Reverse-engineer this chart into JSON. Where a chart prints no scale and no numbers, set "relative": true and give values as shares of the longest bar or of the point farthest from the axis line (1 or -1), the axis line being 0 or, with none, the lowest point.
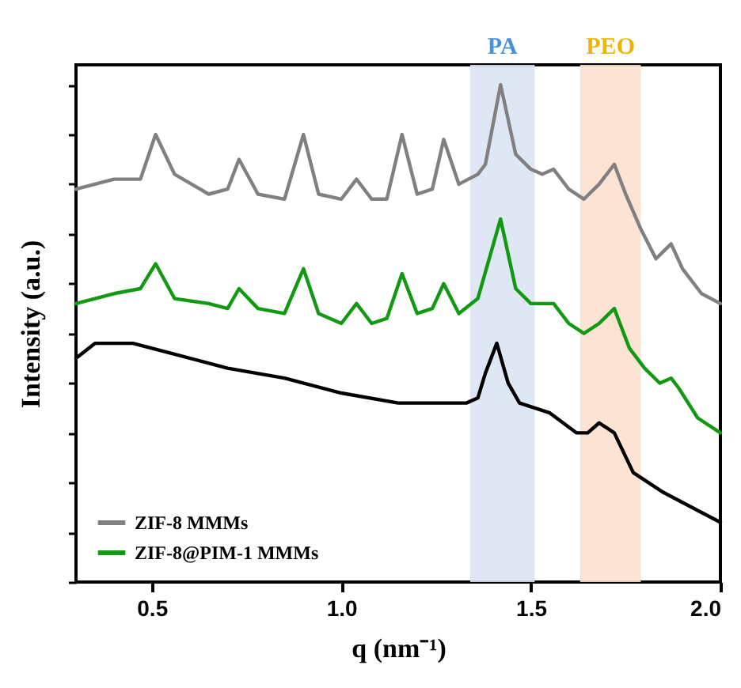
{
  "chart_data": {
    "type": "line",
    "relative": true,
    "xlabel": "q (nm⁻¹)",
    "ylabel": "Intensity (a.u.)",
    "xlim": [
      0.3,
      2.0
    ],
    "xticks": [
      {
        "value": 0.5,
        "label": "0.5"
      },
      {
        "value": 1,
        "label": "1.0"
      },
      {
        "value": 1.5,
        "label": "1.5"
      },
      {
        "value": 2,
        "label": "2.0"
      }
    ],
    "legend": "bottom left",
    "grid": false,
    "bands": [
      {
        "axis": "x",
        "from": 1.34,
        "to": 1.51,
        "label": "PA",
        "color": "#dbe3f3"
      },
      {
        "axis": "x",
        "from": 1.63,
        "to": 1.79,
        "label": "PEO",
        "color": "#fde0cf"
      }
    ],
    "series": [
      {
        "color": "#000000",
        "x": [
          0.3,
          0.35,
          0.45,
          0.55,
          0.7,
          0.85,
          1.0,
          1.15,
          1.25,
          1.33,
          1.36,
          1.38,
          1.41,
          1.44,
          1.47,
          1.55,
          1.62,
          1.65,
          1.68,
          1.72,
          1.77,
          1.85,
          1.95,
          2.0
        ],
        "values": [
          0.45,
          0.48,
          0.48,
          0.46,
          0.43,
          0.41,
          0.38,
          0.36,
          0.36,
          0.36,
          0.37,
          0.42,
          0.48,
          0.4,
          0.36,
          0.34,
          0.3,
          0.3,
          0.32,
          0.3,
          0.22,
          0.18,
          0.14,
          0.12
        ]
      },
      {
        "name": "ZIF-8 MMMs",
        "color": "#808080",
        "x": [
          0.3,
          0.4,
          0.47,
          0.51,
          0.56,
          0.65,
          0.7,
          0.73,
          0.78,
          0.85,
          0.9,
          0.94,
          1.0,
          1.04,
          1.08,
          1.12,
          1.16,
          1.2,
          1.24,
          1.27,
          1.31,
          1.36,
          1.38,
          1.42,
          1.46,
          1.5,
          1.53,
          1.56,
          1.6,
          1.64,
          1.68,
          1.72,
          1.75,
          1.79,
          1.83,
          1.87,
          1.9,
          1.95,
          2.0
        ],
        "values": [
          0.79,
          0.81,
          0.81,
          0.9,
          0.82,
          0.78,
          0.79,
          0.85,
          0.78,
          0.77,
          0.9,
          0.78,
          0.77,
          0.81,
          0.77,
          0.77,
          0.9,
          0.78,
          0.79,
          0.89,
          0.8,
          0.82,
          0.84,
          1.0,
          0.86,
          0.83,
          0.82,
          0.83,
          0.79,
          0.77,
          0.8,
          0.84,
          0.78,
          0.71,
          0.65,
          0.68,
          0.63,
          0.58,
          0.56
        ]
      },
      {
        "name": "ZIF-8@PIM-1 MMMs",
        "color": "#119a11",
        "x": [
          0.3,
          0.4,
          0.47,
          0.51,
          0.56,
          0.65,
          0.7,
          0.73,
          0.78,
          0.85,
          0.9,
          0.94,
          1.0,
          1.04,
          1.08,
          1.12,
          1.16,
          1.2,
          1.24,
          1.27,
          1.31,
          1.36,
          1.42,
          1.46,
          1.5,
          1.53,
          1.56,
          1.6,
          1.64,
          1.68,
          1.72,
          1.76,
          1.8,
          1.84,
          1.87,
          1.89,
          1.94,
          2.0
        ],
        "values": [
          0.56,
          0.58,
          0.59,
          0.64,
          0.57,
          0.56,
          0.55,
          0.59,
          0.55,
          0.54,
          0.63,
          0.54,
          0.52,
          0.56,
          0.52,
          0.53,
          0.62,
          0.54,
          0.55,
          0.6,
          0.54,
          0.57,
          0.73,
          0.59,
          0.56,
          0.56,
          0.56,
          0.52,
          0.5,
          0.52,
          0.55,
          0.47,
          0.43,
          0.4,
          0.41,
          0.39,
          0.33,
          0.3
        ]
      }
    ]
  }
}
